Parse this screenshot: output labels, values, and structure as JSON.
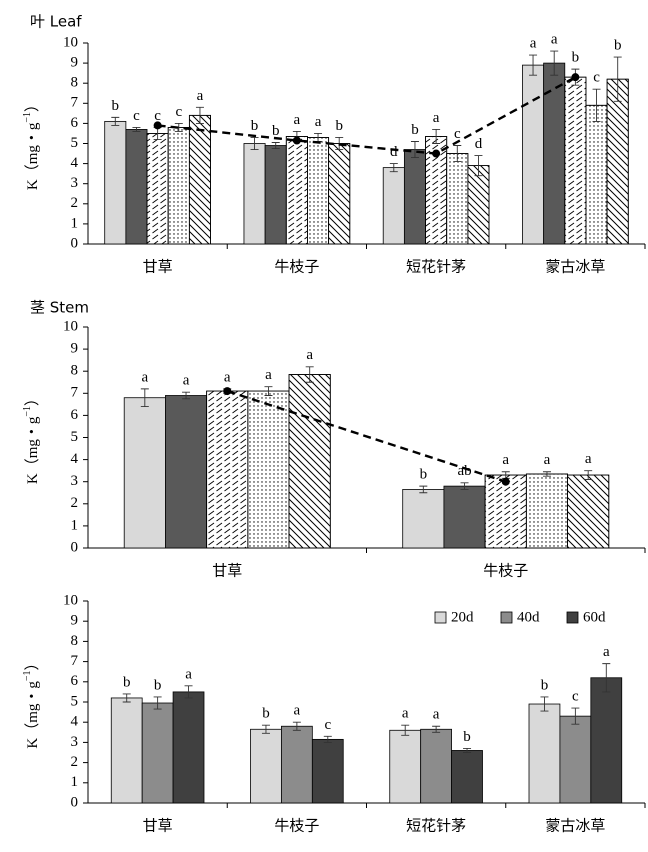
{
  "chart_data": [
    {
      "type": "bar",
      "title": "叶 Leaf",
      "ylabel": "K（mg・g",
      "ylabel_sup": "−1",
      "ylabel_end": "）",
      "categories": [
        "甘草",
        "牛枝子",
        "短花针茅",
        "蒙古冰草"
      ],
      "ylim": [
        0,
        10
      ],
      "yticks": [
        0,
        1,
        2,
        3,
        4,
        5,
        6,
        7,
        8,
        9,
        10
      ],
      "series": [
        {
          "color": "#d9d9d9",
          "pattern": "solid",
          "values": [
            6.1,
            5.0,
            3.8,
            8.9
          ],
          "errors": [
            0.2,
            0.3,
            0.2,
            0.5
          ],
          "letters": [
            "b",
            "b",
            "d",
            "a"
          ]
        },
        {
          "color": "#595959",
          "pattern": "solid",
          "values": [
            5.7,
            4.9,
            4.7,
            9.0
          ],
          "errors": [
            0.1,
            0.15,
            0.4,
            0.6
          ],
          "letters": [
            "c",
            "b",
            "b",
            "a"
          ]
        },
        {
          "color": "#ffffff",
          "pattern": "wave",
          "values": [
            5.5,
            5.35,
            5.35,
            8.3
          ],
          "errors": [
            0.3,
            0.25,
            0.35,
            0.4
          ],
          "letters": [
            "c",
            "a",
            "a",
            "b"
          ]
        },
        {
          "color": "#ffffff",
          "pattern": "dots",
          "values": [
            5.8,
            5.3,
            4.5,
            6.9
          ],
          "errors": [
            0.2,
            0.2,
            0.4,
            0.8
          ],
          "letters": [
            "c",
            "a",
            "c",
            "c"
          ]
        },
        {
          "color": "#ffffff",
          "pattern": "diagonal",
          "values": [
            6.4,
            5.0,
            3.9,
            8.2
          ],
          "errors": [
            0.4,
            0.3,
            0.5,
            1.1
          ],
          "letters": [
            "a",
            "b",
            "d",
            "b"
          ]
        }
      ],
      "trend": {
        "values": [
          5.9,
          5.15,
          4.5,
          8.3
        ],
        "style": "dashed",
        "color": "#000000"
      }
    },
    {
      "type": "bar",
      "title": "茎 Stem",
      "ylabel": "K（mg・g",
      "ylabel_sup": "−1",
      "ylabel_end": "）",
      "categories": [
        "甘草",
        "牛枝子"
      ],
      "ylim": [
        0,
        10
      ],
      "yticks": [
        0,
        1,
        2,
        3,
        4,
        5,
        6,
        7,
        8,
        9,
        10
      ],
      "series": [
        {
          "color": "#d9d9d9",
          "pattern": "solid",
          "values": [
            6.8,
            2.65
          ],
          "errors": [
            0.4,
            0.15
          ],
          "letters": [
            "a",
            "b"
          ]
        },
        {
          "color": "#595959",
          "pattern": "solid",
          "values": [
            6.9,
            2.8
          ],
          "errors": [
            0.15,
            0.15
          ],
          "letters": [
            "a",
            "ab"
          ]
        },
        {
          "color": "#ffffff",
          "pattern": "wave",
          "values": [
            7.1,
            3.3
          ],
          "errors": [
            0.1,
            0.15
          ],
          "letters": [
            "a",
            "a"
          ]
        },
        {
          "color": "#ffffff",
          "pattern": "dots",
          "values": [
            7.1,
            3.35
          ],
          "errors": [
            0.2,
            0.1
          ],
          "letters": [
            "a",
            "a"
          ]
        },
        {
          "color": "#ffffff",
          "pattern": "diagonal",
          "values": [
            7.85,
            3.3
          ],
          "errors": [
            0.35,
            0.2
          ],
          "letters": [
            "a",
            "a"
          ]
        }
      ],
      "trend": {
        "values": [
          7.1,
          3.0
        ],
        "style": "dashed",
        "color": "#000000"
      }
    },
    {
      "type": "bar",
      "ylabel": "K（mg・g",
      "ylabel_sup": "−1",
      "ylabel_end": "）",
      "categories": [
        "甘草",
        "牛枝子",
        "短花针茅",
        "蒙古冰草"
      ],
      "ylim": [
        0,
        10
      ],
      "yticks": [
        0,
        1,
        2,
        3,
        4,
        5,
        6,
        7,
        8,
        9,
        10
      ],
      "legend": "upper right",
      "series": [
        {
          "name": "20d",
          "color": "#d9d9d9",
          "pattern": "solid",
          "values": [
            5.2,
            3.65,
            3.6,
            4.9
          ],
          "errors": [
            0.2,
            0.2,
            0.25,
            0.35
          ],
          "letters": [
            "b",
            "b",
            "a",
            "b"
          ]
        },
        {
          "name": "40d",
          "color": "#8c8c8c",
          "pattern": "solid",
          "values": [
            4.95,
            3.8,
            3.65,
            4.3
          ],
          "errors": [
            0.3,
            0.2,
            0.15,
            0.4
          ],
          "letters": [
            "b",
            "a",
            "a",
            "c"
          ]
        },
        {
          "name": "60d",
          "color": "#404040",
          "pattern": "solid",
          "values": [
            5.5,
            3.15,
            2.6,
            6.2
          ],
          "errors": [
            0.3,
            0.15,
            0.1,
            0.7
          ],
          "letters": [
            "a",
            "c",
            "b",
            "a"
          ]
        }
      ]
    }
  ]
}
